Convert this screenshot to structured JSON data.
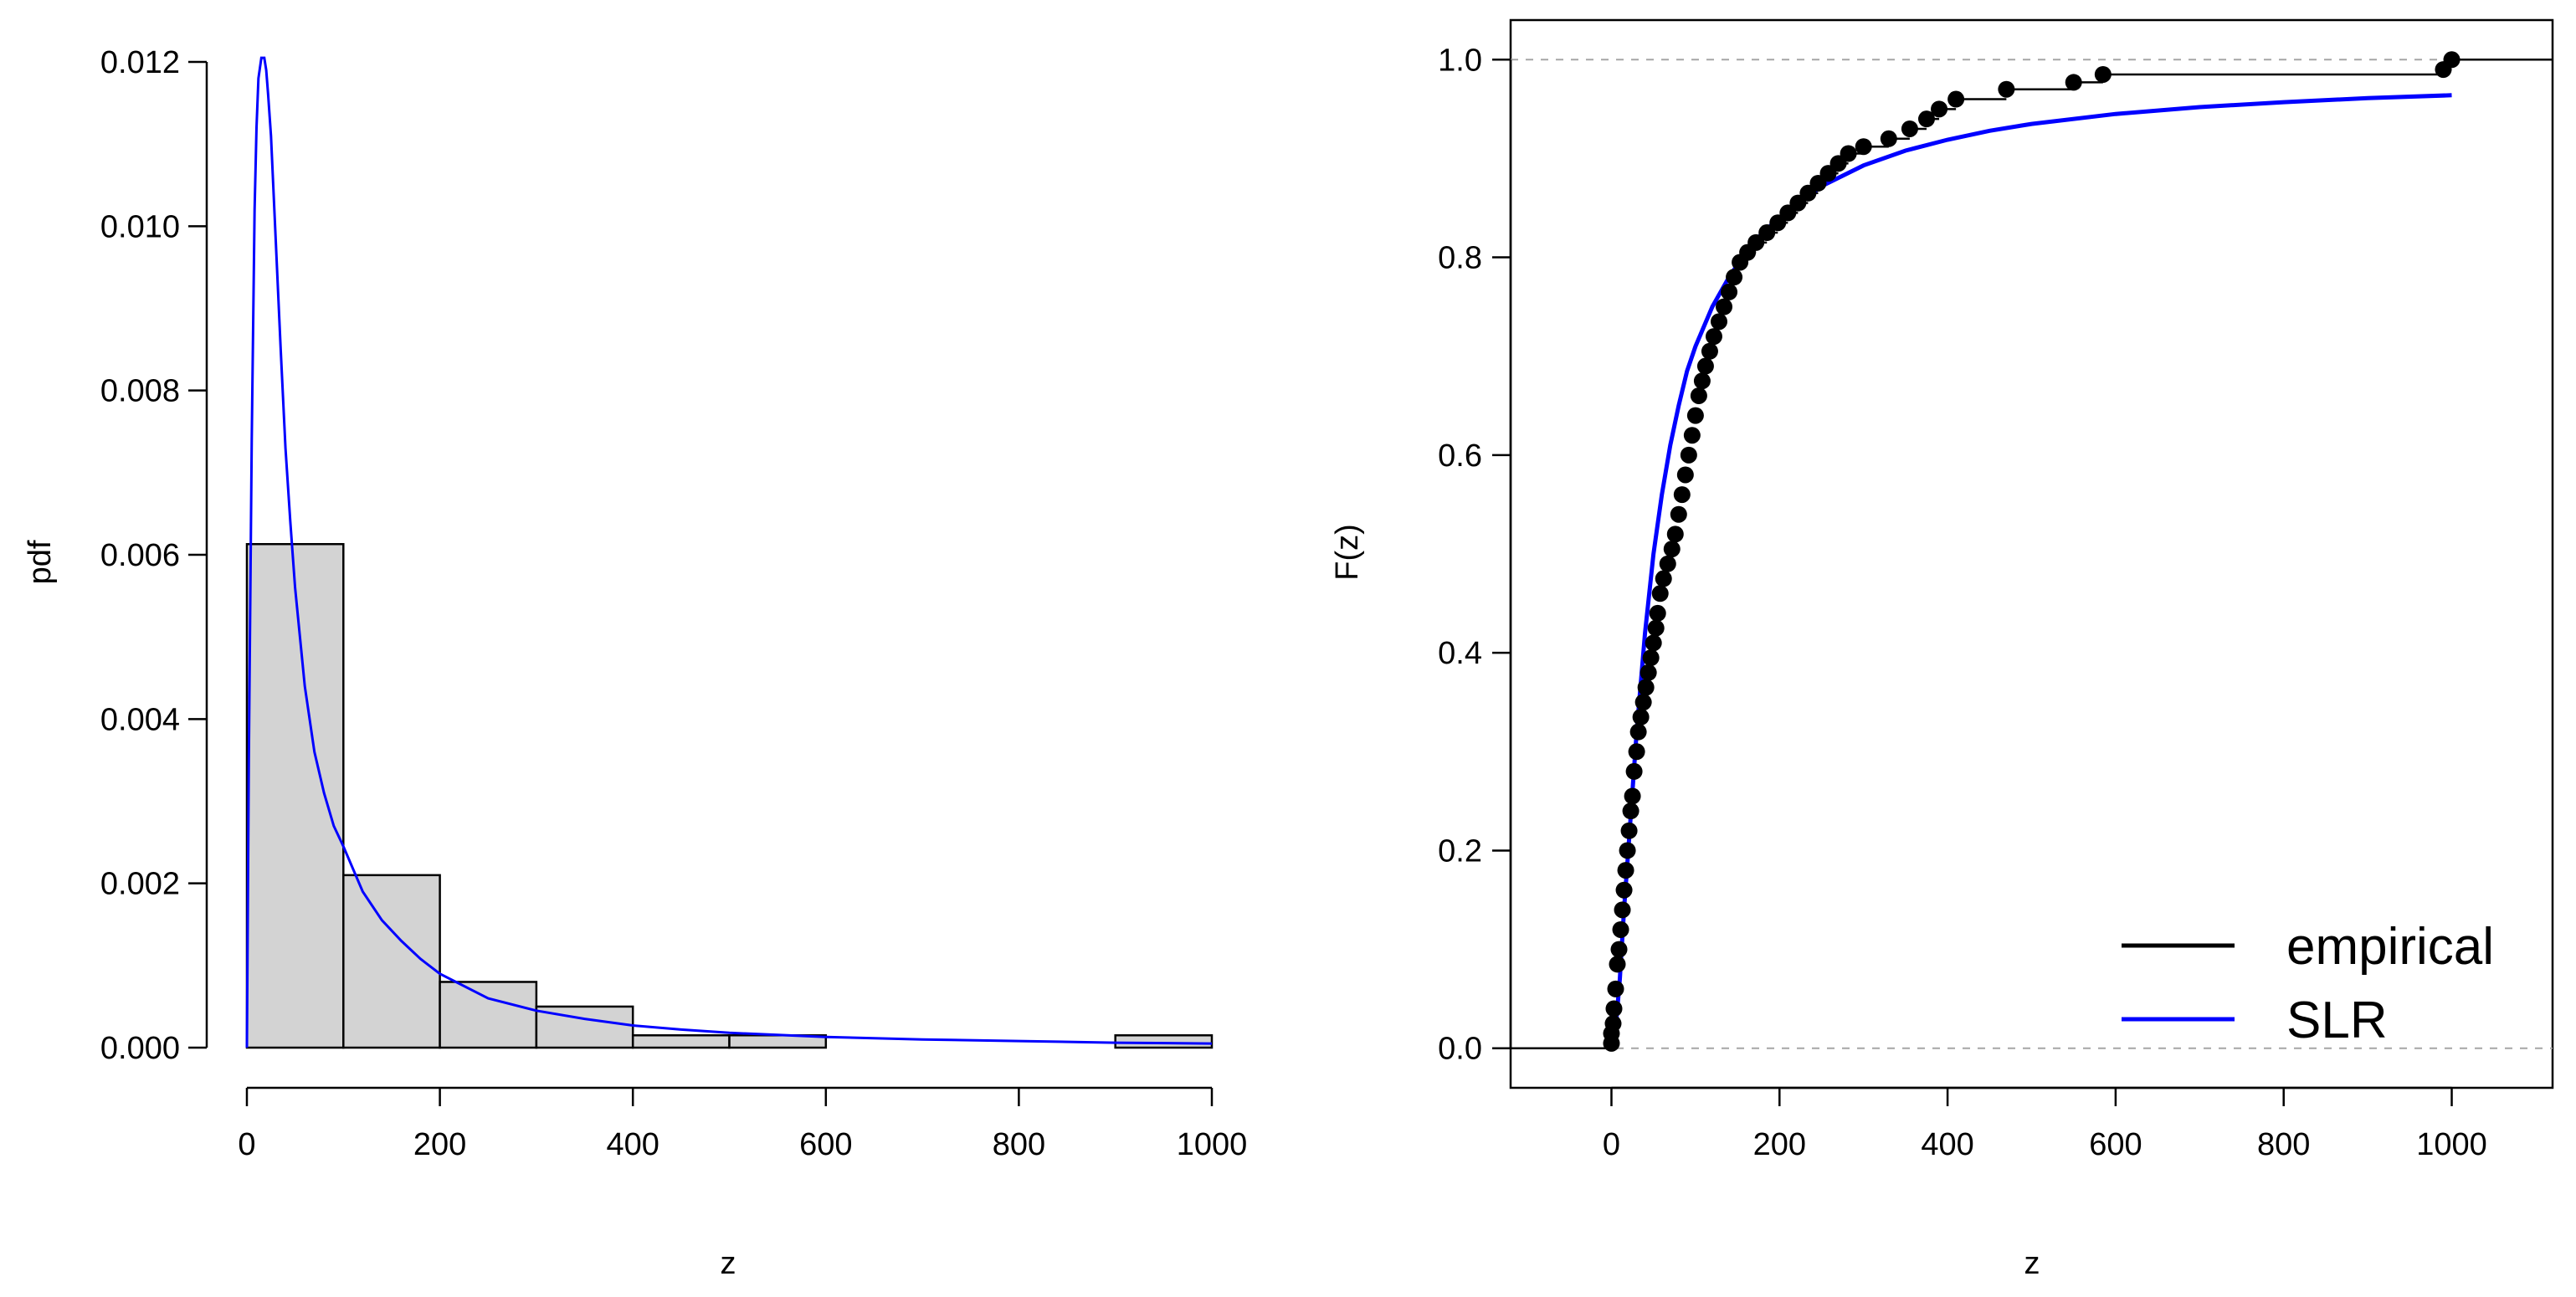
{
  "chart_data": [
    {
      "type": "bar",
      "variant": "histogram",
      "xlabel": "z",
      "ylabel": "pdf",
      "xlim": [
        0,
        1000
      ],
      "ylim": [
        0,
        0.012
      ],
      "x_ticks": [
        0,
        200,
        400,
        600,
        800,
        1000
      ],
      "y_ticks": [
        0,
        0.002,
        0.004,
        0.006,
        0.008,
        0.01,
        0.012
      ],
      "x_tick_labels": [
        "0",
        "200",
        "400",
        "600",
        "800",
        "1000"
      ],
      "y_tick_labels": [
        "0.000",
        "0.002",
        "0.004",
        "0.006",
        "0.008",
        "0.010",
        "0.012"
      ],
      "bins": [
        {
          "from": 0,
          "to": 100,
          "density": 0.00613
        },
        {
          "from": 100,
          "to": 200,
          "density": 0.0021
        },
        {
          "from": 200,
          "to": 300,
          "density": 0.0008
        },
        {
          "from": 300,
          "to": 400,
          "density": 0.0005
        },
        {
          "from": 400,
          "to": 500,
          "density": 0.00015
        },
        {
          "from": 500,
          "to": 600,
          "density": 0.00015
        },
        {
          "from": 600,
          "to": 700,
          "density": 0
        },
        {
          "from": 700,
          "to": 800,
          "density": 0
        },
        {
          "from": 800,
          "to": 900,
          "density": 0
        },
        {
          "from": 900,
          "to": 1000,
          "density": 0.00015
        }
      ],
      "bar_color": "#d3d3d3",
      "curve": {
        "color": "#0000ff",
        "x": [
          0,
          2,
          5,
          8,
          10,
          12,
          15,
          18,
          20,
          22,
          25,
          30,
          35,
          40,
          45,
          50,
          60,
          70,
          80,
          90,
          100,
          120,
          140,
          160,
          180,
          200,
          250,
          300,
          350,
          400,
          450,
          500,
          600,
          700,
          800,
          900,
          1000
        ],
        "y": [
          0,
          0.0035,
          0.0074,
          0.0102,
          0.0112,
          0.0118,
          0.01205,
          0.01205,
          0.0119,
          0.0116,
          0.0111,
          0.0098,
          0.0085,
          0.0073,
          0.0064,
          0.0056,
          0.0044,
          0.0036,
          0.0031,
          0.0027,
          0.00245,
          0.0019,
          0.00155,
          0.0013,
          0.00108,
          0.0009,
          0.0006,
          0.00045,
          0.00035,
          0.00027,
          0.00022,
          0.00018,
          0.00013,
          0.0001,
          8e-05,
          6e-05,
          5e-05
        ]
      }
    },
    {
      "type": "line",
      "variant": "ecdf",
      "xlabel": "z",
      "ylabel": "F(z)",
      "xlim": [
        -120,
        1120
      ],
      "ylim": [
        -0.04,
        1.04
      ],
      "x_ticks": [
        0,
        200,
        400,
        600,
        800,
        1000
      ],
      "y_ticks": [
        0,
        0.2,
        0.4,
        0.6,
        0.8,
        1
      ],
      "x_tick_labels": [
        "0",
        "200",
        "400",
        "600",
        "800",
        "1000"
      ],
      "y_tick_labels": [
        "0.0",
        "0.2",
        "0.4",
        "0.6",
        "0.8",
        "1.0"
      ],
      "grid": false,
      "reference_lines": [
        0,
        1
      ],
      "reference_line_color": "#a6a6a6",
      "legend": {
        "position": "bottom-right",
        "entries": [
          {
            "label": "empirical",
            "color": "#000000"
          },
          {
            "label": "SLR",
            "color": "#0000ff"
          }
        ]
      },
      "series": [
        {
          "name": "empirical",
          "color": "#000000",
          "points": [
            [
              0,
              0.005
            ],
            [
              0,
              0.015
            ],
            [
              2,
              0.025
            ],
            [
              3,
              0.04
            ],
            [
              5,
              0.06
            ],
            [
              7,
              0.085
            ],
            [
              9,
              0.1
            ],
            [
              11,
              0.12
            ],
            [
              13,
              0.14
            ],
            [
              15,
              0.16
            ],
            [
              17,
              0.18
            ],
            [
              19,
              0.2
            ],
            [
              21,
              0.22
            ],
            [
              23,
              0.24
            ],
            [
              25,
              0.255
            ],
            [
              27,
              0.28
            ],
            [
              30,
              0.3
            ],
            [
              32,
              0.32
            ],
            [
              35,
              0.335
            ],
            [
              38,
              0.35
            ],
            [
              41,
              0.365
            ],
            [
              44,
              0.38
            ],
            [
              47,
              0.395
            ],
            [
              50,
              0.41
            ],
            [
              53,
              0.425
            ],
            [
              55,
              0.44
            ],
            [
              58,
              0.46
            ],
            [
              62,
              0.475
            ],
            [
              67,
              0.49
            ],
            [
              72,
              0.505
            ],
            [
              76,
              0.52
            ],
            [
              80,
              0.54
            ],
            [
              84,
              0.56
            ],
            [
              88,
              0.58
            ],
            [
              92,
              0.6
            ],
            [
              96,
              0.62
            ],
            [
              100,
              0.64
            ],
            [
              104,
              0.66
            ],
            [
              108,
              0.675
            ],
            [
              112,
              0.69
            ],
            [
              117,
              0.705
            ],
            [
              122,
              0.72
            ],
            [
              128,
              0.735
            ],
            [
              134,
              0.75
            ],
            [
              140,
              0.765
            ],
            [
              146,
              0.78
            ],
            [
              153,
              0.795
            ],
            [
              162,
              0.805
            ],
            [
              172,
              0.815
            ],
            [
              185,
              0.825
            ],
            [
              198,
              0.835
            ],
            [
              210,
              0.845
            ],
            [
              222,
              0.855
            ],
            [
              234,
              0.865
            ],
            [
              246,
              0.875
            ],
            [
              258,
              0.885
            ],
            [
              270,
              0.895
            ],
            [
              282,
              0.905
            ],
            [
              300,
              0.912
            ],
            [
              330,
              0.92
            ],
            [
              355,
              0.93
            ],
            [
              375,
              0.94
            ],
            [
              390,
              0.95
            ],
            [
              410,
              0.96
            ],
            [
              470,
              0.97
            ],
            [
              550,
              0.977
            ],
            [
              585,
              0.985
            ],
            [
              990,
              0.99
            ],
            [
              1000,
              1.0
            ]
          ]
        },
        {
          "name": "SLR",
          "color": "#0000ff",
          "x": [
            0,
            5,
            10,
            15,
            20,
            25,
            30,
            40,
            50,
            60,
            70,
            80,
            90,
            100,
            120,
            140,
            160,
            180,
            200,
            250,
            300,
            350,
            400,
            450,
            500,
            600,
            700,
            800,
            900,
            1000
          ],
          "y": [
            0,
            0.02,
            0.07,
            0.14,
            0.2,
            0.26,
            0.32,
            0.42,
            0.5,
            0.56,
            0.61,
            0.65,
            0.685,
            0.71,
            0.75,
            0.78,
            0.805,
            0.825,
            0.84,
            0.872,
            0.893,
            0.908,
            0.919,
            0.928,
            0.935,
            0.945,
            0.952,
            0.957,
            0.961,
            0.964
          ]
        }
      ]
    }
  ]
}
